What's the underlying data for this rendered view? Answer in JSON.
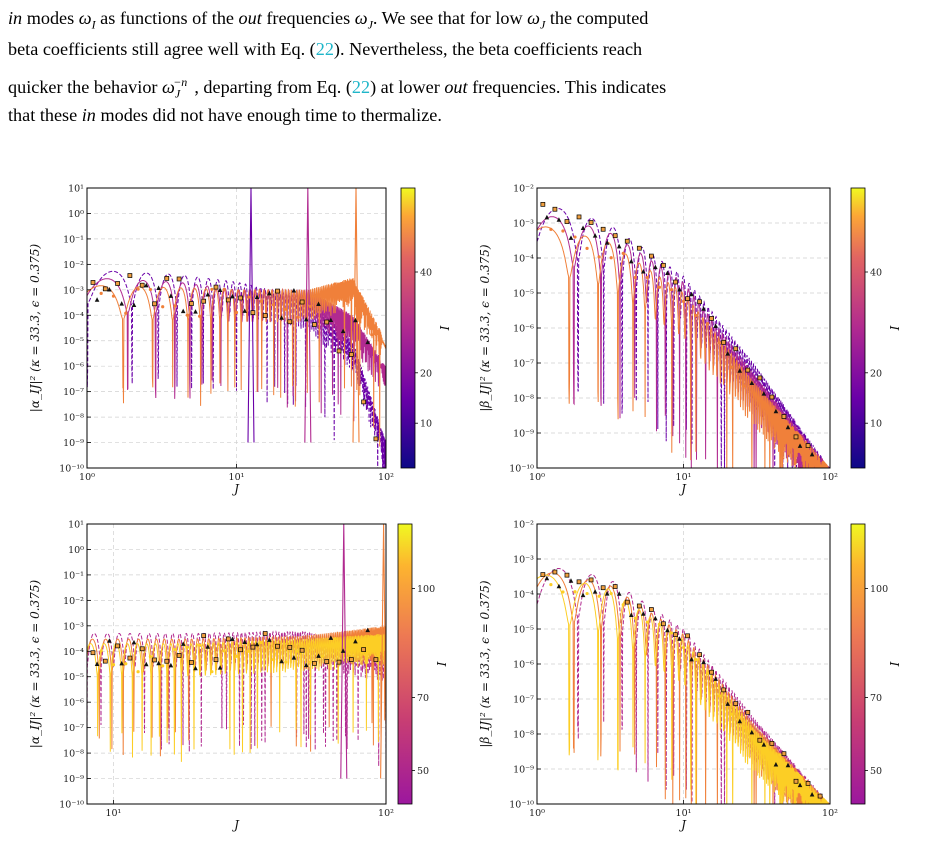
{
  "text": {
    "line1": "in modes ω_I as functions of the out frequencies ω_J. We see that for low ω_J the computed",
    "line2": "beta coefficients still agree well with Eq. (22). Nevertheless, the beta coefficients reach",
    "line3": "quicker the behavior ω_J^−n, departing from Eq. (22) at lower out frequencies. This indicates",
    "line4": "that these in modes did not have enough time to thermalize.",
    "cite": "22"
  },
  "chart_data": [
    {
      "type": "line",
      "panel": "top-left",
      "xlabel": "J",
      "ylabel": "|α_IJ|²   (κ = 33.3,   ϵ = 0.375)",
      "xscale": "log",
      "yscale": "log",
      "xlim": [
        1,
        100
      ],
      "ylim": [
        1e-10,
        10
      ],
      "x_tick_labels": [
        "10⁰",
        "10¹",
        "10²"
      ],
      "y_tick_labels": [
        "10⁻¹⁰",
        "10⁻⁹",
        "10⁻⁸",
        "10⁻⁷",
        "10⁻⁶",
        "10⁻⁵",
        "10⁻⁴",
        "10⁻³",
        "10⁻²",
        "10⁻¹",
        "10⁰",
        "10¹"
      ],
      "colorbar": {
        "label": "I",
        "ticks": [
          "10",
          "20",
          "40"
        ],
        "colormap": "plasma"
      },
      "grid": true,
      "envelopes": [
        {
          "color": "#6a00a8",
          "dash": true,
          "x": [
            1,
            4,
            10,
            30,
            60,
            100
          ],
          "y": [
            0.006,
            0.004,
            0.002,
            0.0005,
            1e-05,
            1e-09
          ]
        },
        {
          "color": "#b12a90",
          "dash": false,
          "x": [
            1,
            4,
            10,
            30,
            60,
            100
          ],
          "y": [
            0.003,
            0.002,
            0.001,
            0.001,
            0.0001,
            1e-06
          ]
        },
        {
          "color": "#f0803a",
          "dash": false,
          "x": [
            1,
            4,
            10,
            30,
            60,
            100
          ],
          "y": [
            0.0015,
            0.0012,
            0.001,
            0.001,
            0.003,
            1e-05
          ]
        }
      ],
      "peaks": [
        {
          "x": 12.5,
          "y": 10,
          "color": "#6a00a8"
        },
        {
          "x": 30,
          "y": 10,
          "color": "#b12a90"
        },
        {
          "x": 63,
          "y": 10,
          "color": "#f0803a"
        }
      ]
    },
    {
      "type": "line",
      "panel": "top-right",
      "xlabel": "J",
      "ylabel": "|β_IJ|²   (κ = 33.3,   ϵ = 0.375)",
      "xscale": "log",
      "yscale": "log",
      "xlim": [
        1,
        100
      ],
      "ylim": [
        1e-10,
        0.01
      ],
      "x_tick_labels": [
        "10⁰",
        "10¹",
        "10²"
      ],
      "y_tick_labels": [
        "10⁻¹⁰",
        "10⁻⁹",
        "10⁻⁸",
        "10⁻⁷",
        "10⁻⁶",
        "10⁻⁵",
        "10⁻⁴",
        "10⁻³",
        "10⁻²"
      ],
      "colorbar": {
        "label": "I",
        "ticks": [
          "10",
          "20",
          "40"
        ],
        "colormap": "plasma"
      },
      "grid": true,
      "envelopes": [
        {
          "color": "#6a00a8",
          "dash": true,
          "x": [
            1,
            3,
            10,
            30,
            100
          ],
          "y": [
            0.004,
            0.001,
            3e-05,
            1e-07,
            1e-10
          ]
        },
        {
          "color": "#b12a90",
          "dash": false,
          "x": [
            1,
            3,
            10,
            30,
            100
          ],
          "y": [
            0.002,
            0.0006,
            2e-05,
            5e-08,
            1e-10
          ]
        },
        {
          "color": "#f0803a",
          "dash": false,
          "x": [
            1,
            3,
            10,
            30,
            100
          ],
          "y": [
            0.0009,
            0.0003,
            1e-05,
            3e-08,
            1e-10
          ]
        }
      ]
    },
    {
      "type": "line",
      "panel": "bottom-left",
      "xlabel": "J",
      "ylabel": "|α_IJ|²   (κ = 33.3,   ϵ = 0.375)",
      "xscale": "log",
      "yscale": "log",
      "xlim": [
        8,
        100
      ],
      "ylim": [
        1e-10,
        10
      ],
      "x_tick_labels": [
        "10¹",
        "10²"
      ],
      "y_tick_labels": [
        "10⁻¹⁰",
        "10⁻⁹",
        "10⁻⁸",
        "10⁻⁷",
        "10⁻⁶",
        "10⁻⁵",
        "10⁻⁴",
        "10⁻³",
        "10⁻²",
        "10⁻¹",
        "10⁰",
        "10¹"
      ],
      "colorbar": {
        "label": "I",
        "ticks": [
          "50",
          "70",
          "100"
        ],
        "colormap": "plasma"
      },
      "grid": true,
      "envelopes": [
        {
          "color": "#b12a90",
          "dash": true,
          "x": [
            8,
            20,
            50,
            100
          ],
          "y": [
            0.0005,
            0.0005,
            0.0006,
            0.0001
          ]
        },
        {
          "color": "#f0803a",
          "dash": false,
          "x": [
            8,
            20,
            50,
            100
          ],
          "y": [
            0.0003,
            0.0003,
            0.0004,
            0.001
          ]
        },
        {
          "color": "#fcce25",
          "dash": false,
          "x": [
            8,
            20,
            50,
            100
          ],
          "y": [
            0.0002,
            0.0002,
            0.0003,
            0.0005
          ]
        }
      ],
      "peaks": [
        {
          "x": 70,
          "y": 10,
          "color": "#b12a90"
        },
        {
          "x": 98,
          "y": 10,
          "color": "#f0803a"
        }
      ]
    },
    {
      "type": "line",
      "panel": "bottom-right",
      "xlabel": "J",
      "ylabel": "|β_IJ|²   (κ = 33.3,   ϵ = 0.375)",
      "xscale": "log",
      "yscale": "log",
      "xlim": [
        1,
        100
      ],
      "ylim": [
        1e-10,
        0.01
      ],
      "x_tick_labels": [
        "10⁰",
        "10¹",
        "10²"
      ],
      "y_tick_labels": [
        "10⁻¹⁰",
        "10⁻⁹",
        "10⁻⁸",
        "10⁻⁷",
        "10⁻⁶",
        "10⁻⁵",
        "10⁻⁴",
        "10⁻³",
        "10⁻²"
      ],
      "colorbar": {
        "label": "I",
        "ticks": [
          "50",
          "70",
          "100"
        ],
        "colormap": "plasma"
      },
      "grid": true,
      "envelopes": [
        {
          "color": "#b12a90",
          "dash": true,
          "x": [
            1,
            3,
            10,
            30,
            100
          ],
          "y": [
            0.0007,
            0.0003,
            1e-05,
            3e-08,
            1e-10
          ]
        },
        {
          "color": "#f0803a",
          "dash": false,
          "x": [
            1,
            3,
            10,
            30,
            100
          ],
          "y": [
            0.0005,
            0.0002,
            7e-06,
            2e-08,
            1e-10
          ]
        },
        {
          "color": "#fcce25",
          "dash": false,
          "x": [
            1,
            3,
            10,
            30,
            100
          ],
          "y": [
            0.0004,
            0.00015,
            5e-06,
            1.5e-08,
            1e-10
          ]
        }
      ]
    }
  ]
}
